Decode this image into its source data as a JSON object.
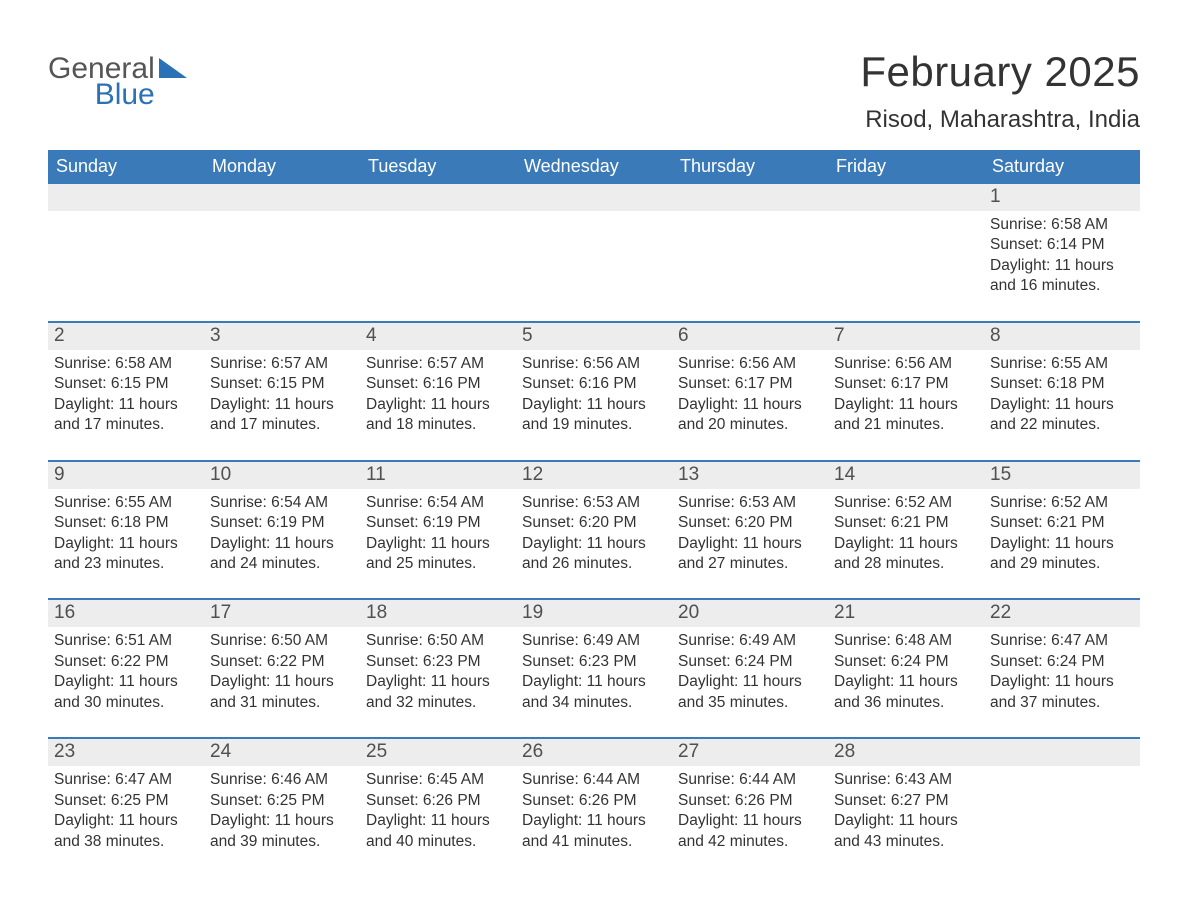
{
  "brand": {
    "word1": "General",
    "word2": "Blue"
  },
  "title": "February 2025",
  "location": "Risod, Maharashtra, India",
  "colors": {
    "accent": "#3a7ab8",
    "brand_blue": "#2a72b5",
    "daybar_bg": "#ededed",
    "text": "#333333",
    "muted_text": "#505050",
    "background": "#ffffff"
  },
  "typography": {
    "title_fontsize": 42,
    "location_fontsize": 24,
    "dow_fontsize": 18,
    "daynum_fontsize": 19,
    "body_fontsize": 15.5
  },
  "calendar": {
    "days_of_week": [
      "Sunday",
      "Monday",
      "Tuesday",
      "Wednesday",
      "Thursday",
      "Friday",
      "Saturday"
    ],
    "first_weekday_index": 6,
    "weeks": [
      [
        null,
        null,
        null,
        null,
        null,
        null,
        {
          "n": "1",
          "sunrise": "Sunrise: 6:58 AM",
          "sunset": "Sunset: 6:14 PM",
          "daylight1": "Daylight: 11 hours",
          "daylight2": "and 16 minutes."
        }
      ],
      [
        {
          "n": "2",
          "sunrise": "Sunrise: 6:58 AM",
          "sunset": "Sunset: 6:15 PM",
          "daylight1": "Daylight: 11 hours",
          "daylight2": "and 17 minutes."
        },
        {
          "n": "3",
          "sunrise": "Sunrise: 6:57 AM",
          "sunset": "Sunset: 6:15 PM",
          "daylight1": "Daylight: 11 hours",
          "daylight2": "and 17 minutes."
        },
        {
          "n": "4",
          "sunrise": "Sunrise: 6:57 AM",
          "sunset": "Sunset: 6:16 PM",
          "daylight1": "Daylight: 11 hours",
          "daylight2": "and 18 minutes."
        },
        {
          "n": "5",
          "sunrise": "Sunrise: 6:56 AM",
          "sunset": "Sunset: 6:16 PM",
          "daylight1": "Daylight: 11 hours",
          "daylight2": "and 19 minutes."
        },
        {
          "n": "6",
          "sunrise": "Sunrise: 6:56 AM",
          "sunset": "Sunset: 6:17 PM",
          "daylight1": "Daylight: 11 hours",
          "daylight2": "and 20 minutes."
        },
        {
          "n": "7",
          "sunrise": "Sunrise: 6:56 AM",
          "sunset": "Sunset: 6:17 PM",
          "daylight1": "Daylight: 11 hours",
          "daylight2": "and 21 minutes."
        },
        {
          "n": "8",
          "sunrise": "Sunrise: 6:55 AM",
          "sunset": "Sunset: 6:18 PM",
          "daylight1": "Daylight: 11 hours",
          "daylight2": "and 22 minutes."
        }
      ],
      [
        {
          "n": "9",
          "sunrise": "Sunrise: 6:55 AM",
          "sunset": "Sunset: 6:18 PM",
          "daylight1": "Daylight: 11 hours",
          "daylight2": "and 23 minutes."
        },
        {
          "n": "10",
          "sunrise": "Sunrise: 6:54 AM",
          "sunset": "Sunset: 6:19 PM",
          "daylight1": "Daylight: 11 hours",
          "daylight2": "and 24 minutes."
        },
        {
          "n": "11",
          "sunrise": "Sunrise: 6:54 AM",
          "sunset": "Sunset: 6:19 PM",
          "daylight1": "Daylight: 11 hours",
          "daylight2": "and 25 minutes."
        },
        {
          "n": "12",
          "sunrise": "Sunrise: 6:53 AM",
          "sunset": "Sunset: 6:20 PM",
          "daylight1": "Daylight: 11 hours",
          "daylight2": "and 26 minutes."
        },
        {
          "n": "13",
          "sunrise": "Sunrise: 6:53 AM",
          "sunset": "Sunset: 6:20 PM",
          "daylight1": "Daylight: 11 hours",
          "daylight2": "and 27 minutes."
        },
        {
          "n": "14",
          "sunrise": "Sunrise: 6:52 AM",
          "sunset": "Sunset: 6:21 PM",
          "daylight1": "Daylight: 11 hours",
          "daylight2": "and 28 minutes."
        },
        {
          "n": "15",
          "sunrise": "Sunrise: 6:52 AM",
          "sunset": "Sunset: 6:21 PM",
          "daylight1": "Daylight: 11 hours",
          "daylight2": "and 29 minutes."
        }
      ],
      [
        {
          "n": "16",
          "sunrise": "Sunrise: 6:51 AM",
          "sunset": "Sunset: 6:22 PM",
          "daylight1": "Daylight: 11 hours",
          "daylight2": "and 30 minutes."
        },
        {
          "n": "17",
          "sunrise": "Sunrise: 6:50 AM",
          "sunset": "Sunset: 6:22 PM",
          "daylight1": "Daylight: 11 hours",
          "daylight2": "and 31 minutes."
        },
        {
          "n": "18",
          "sunrise": "Sunrise: 6:50 AM",
          "sunset": "Sunset: 6:23 PM",
          "daylight1": "Daylight: 11 hours",
          "daylight2": "and 32 minutes."
        },
        {
          "n": "19",
          "sunrise": "Sunrise: 6:49 AM",
          "sunset": "Sunset: 6:23 PM",
          "daylight1": "Daylight: 11 hours",
          "daylight2": "and 34 minutes."
        },
        {
          "n": "20",
          "sunrise": "Sunrise: 6:49 AM",
          "sunset": "Sunset: 6:24 PM",
          "daylight1": "Daylight: 11 hours",
          "daylight2": "and 35 minutes."
        },
        {
          "n": "21",
          "sunrise": "Sunrise: 6:48 AM",
          "sunset": "Sunset: 6:24 PM",
          "daylight1": "Daylight: 11 hours",
          "daylight2": "and 36 minutes."
        },
        {
          "n": "22",
          "sunrise": "Sunrise: 6:47 AM",
          "sunset": "Sunset: 6:24 PM",
          "daylight1": "Daylight: 11 hours",
          "daylight2": "and 37 minutes."
        }
      ],
      [
        {
          "n": "23",
          "sunrise": "Sunrise: 6:47 AM",
          "sunset": "Sunset: 6:25 PM",
          "daylight1": "Daylight: 11 hours",
          "daylight2": "and 38 minutes."
        },
        {
          "n": "24",
          "sunrise": "Sunrise: 6:46 AM",
          "sunset": "Sunset: 6:25 PM",
          "daylight1": "Daylight: 11 hours",
          "daylight2": "and 39 minutes."
        },
        {
          "n": "25",
          "sunrise": "Sunrise: 6:45 AM",
          "sunset": "Sunset: 6:26 PM",
          "daylight1": "Daylight: 11 hours",
          "daylight2": "and 40 minutes."
        },
        {
          "n": "26",
          "sunrise": "Sunrise: 6:44 AM",
          "sunset": "Sunset: 6:26 PM",
          "daylight1": "Daylight: 11 hours",
          "daylight2": "and 41 minutes."
        },
        {
          "n": "27",
          "sunrise": "Sunrise: 6:44 AM",
          "sunset": "Sunset: 6:26 PM",
          "daylight1": "Daylight: 11 hours",
          "daylight2": "and 42 minutes."
        },
        {
          "n": "28",
          "sunrise": "Sunrise: 6:43 AM",
          "sunset": "Sunset: 6:27 PM",
          "daylight1": "Daylight: 11 hours",
          "daylight2": "and 43 minutes."
        },
        null
      ]
    ]
  }
}
